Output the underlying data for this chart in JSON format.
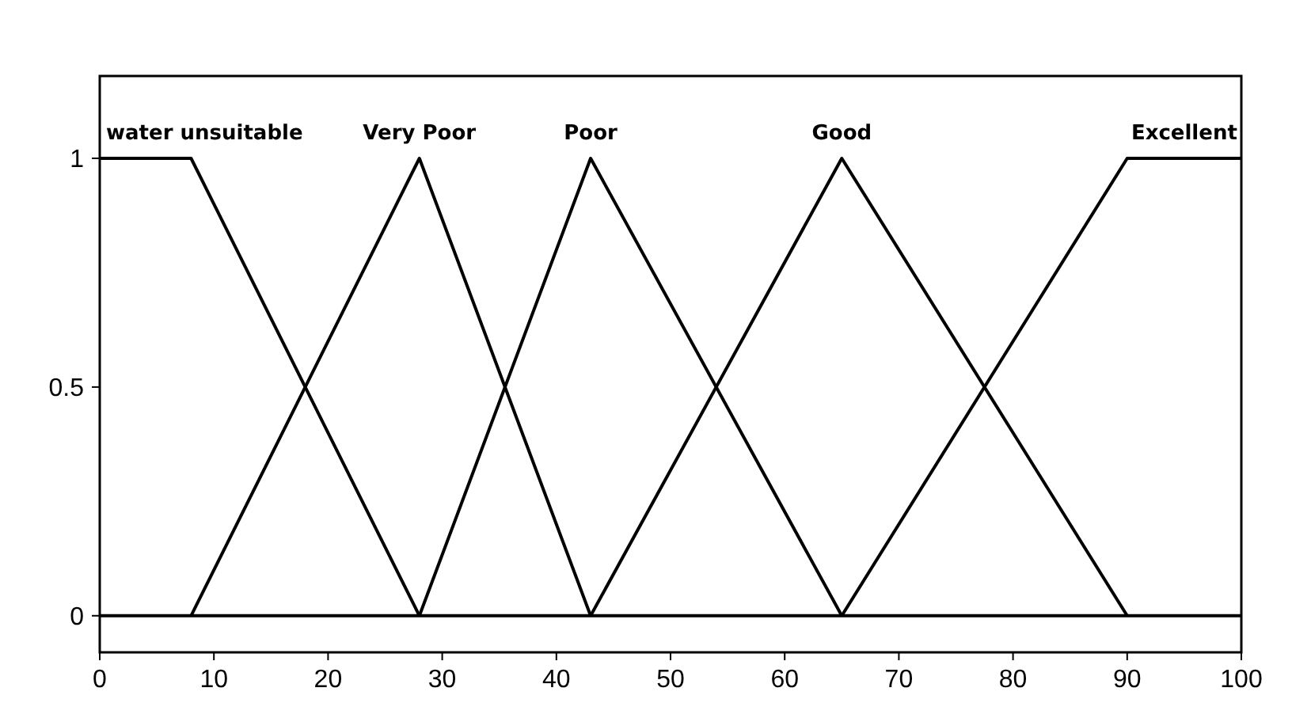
{
  "chart_data": {
    "type": "line",
    "xlim": [
      0,
      100
    ],
    "xticks": [
      0,
      10,
      20,
      30,
      40,
      50,
      60,
      70,
      80,
      90,
      100
    ],
    "ylim": [
      -0.08,
      1.18
    ],
    "yticks": [
      0,
      0.5,
      1
    ],
    "grid": false,
    "marker": "none",
    "line_style": "solid",
    "ref_lines": [
      {
        "axis": "y",
        "value": 0,
        "color": "#000000"
      }
    ],
    "series": [
      {
        "name": "water unsuitable",
        "color": "#000000",
        "x": [
          0,
          8,
          28
        ],
        "values": [
          1,
          1,
          0
        ]
      },
      {
        "name": "Very Poor",
        "color": "#000000",
        "x": [
          8,
          28,
          43
        ],
        "values": [
          0,
          1,
          0
        ]
      },
      {
        "name": "Poor",
        "color": "#000000",
        "x": [
          28,
          43,
          65
        ],
        "values": [
          0,
          1,
          0
        ]
      },
      {
        "name": "Good",
        "color": "#000000",
        "x": [
          43,
          65,
          90
        ],
        "values": [
          0,
          1,
          0
        ]
      },
      {
        "name": "Excellent",
        "color": "#000000",
        "x": [
          65,
          90,
          100
        ],
        "values": [
          0,
          1,
          1
        ]
      }
    ]
  }
}
